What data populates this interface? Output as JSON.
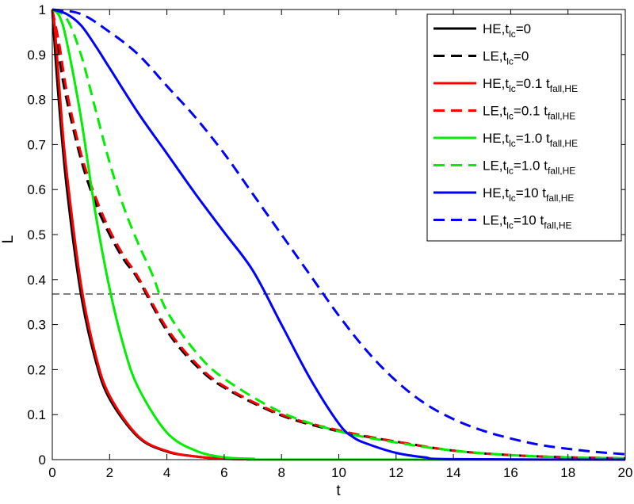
{
  "chart_data": {
    "type": "line",
    "title": "",
    "xlabel": "t",
    "ylabel": "L",
    "xlim": [
      0,
      20
    ],
    "ylim": [
      0,
      1
    ],
    "xticks": [
      0,
      2,
      4,
      6,
      8,
      10,
      12,
      14,
      16,
      18,
      20
    ],
    "yticks": [
      0,
      0.1,
      0.2,
      0.3,
      0.4,
      0.5,
      0.6,
      0.7,
      0.8,
      0.9,
      1
    ],
    "grid": false,
    "legend_position": "top-right",
    "reference_line": {
      "y": 0.3679,
      "style": "dashed",
      "color": "#000000"
    },
    "series": [
      {
        "name": "HE,t_lc=0",
        "legend": {
          "prefix": "HE,t",
          "sub1": "lc",
          "mid": "=0",
          "sub2": ""
        },
        "color": "#000000",
        "dash": "solid",
        "x": [
          0,
          0.2,
          0.5,
          1.0,
          1.5,
          2.0,
          3.0,
          4.0,
          5.0,
          6.0,
          7.0,
          8.0,
          20
        ],
        "y": [
          1,
          0.819,
          0.607,
          0.368,
          0.223,
          0.135,
          0.05,
          0.018,
          0.007,
          0.002,
          0.001,
          0.0,
          0.0
        ]
      },
      {
        "name": "LE,t_lc=0",
        "legend": {
          "prefix": "LE,t",
          "sub1": "lc",
          "mid": "=0",
          "sub2": ""
        },
        "color": "#000000",
        "dash": "dashed",
        "x": [
          0,
          0.25,
          0.5,
          1.0,
          1.5,
          2.0,
          2.5,
          3.0,
          4.0,
          5.0,
          6.0,
          8.0,
          10.0,
          12.0,
          14.0,
          16.0,
          18.0,
          20.0
        ],
        "y": [
          1,
          0.889,
          0.8,
          0.667,
          0.571,
          0.5,
          0.444,
          0.4,
          0.286,
          0.21,
          0.16,
          0.098,
          0.063,
          0.04,
          0.02,
          0.01,
          0.005,
          0.003
        ]
      },
      {
        "name": "HE,t_lc=0.1 t_fall,HE",
        "legend": {
          "prefix": "HE,t",
          "sub1": "lc",
          "mid": "=0.1 t",
          "sub2": "fall,HE"
        },
        "color": "#ff0000",
        "dash": "solid",
        "x": [
          0,
          0.1,
          0.3,
          0.5,
          1.0,
          1.5,
          2.0,
          3.0,
          4.0,
          5.0,
          6.0,
          7.0,
          8.0,
          20
        ],
        "y": [
          1,
          0.95,
          0.78,
          0.64,
          0.39,
          0.235,
          0.142,
          0.052,
          0.019,
          0.007,
          0.002,
          0.001,
          0.0,
          0.0
        ]
      },
      {
        "name": "LE,t_lc=0.1 t_fall,HE",
        "legend": {
          "prefix": "LE,t",
          "sub1": "lc",
          "mid": "=0.1 t",
          "sub2": "fall,HE"
        },
        "color": "#ff0000",
        "dash": "dashed",
        "x": [
          0,
          0.25,
          0.5,
          1.0,
          1.5,
          2.0,
          2.5,
          3.0,
          4.0,
          5.0,
          6.0,
          8.0,
          10.0,
          12.0,
          14.0,
          16.0,
          18.0,
          20.0
        ],
        "y": [
          1,
          0.92,
          0.82,
          0.68,
          0.585,
          0.51,
          0.452,
          0.405,
          0.292,
          0.215,
          0.163,
          0.1,
          0.065,
          0.04,
          0.02,
          0.01,
          0.005,
          0.003
        ]
      },
      {
        "name": "HE,t_lc=1.0 t_fall,HE",
        "legend": {
          "prefix": "HE,t",
          "sub1": "lc",
          "mid": "=1.0 t",
          "sub2": "fall,HE"
        },
        "color": "#00ee00",
        "dash": "solid",
        "x": [
          0,
          0.25,
          0.5,
          1.0,
          1.5,
          2.0,
          2.5,
          3.0,
          4.0,
          5.0,
          6.0,
          7.0,
          8.0,
          20
        ],
        "y": [
          1,
          0.985,
          0.93,
          0.76,
          0.55,
          0.38,
          0.25,
          0.16,
          0.06,
          0.02,
          0.005,
          0.002,
          0.0,
          0.0
        ]
      },
      {
        "name": "LE,t_lc=1.0 t_fall,HE",
        "legend": {
          "prefix": "LE,t",
          "sub1": "lc",
          "mid": "=1.0 t",
          "sub2": "fall,HE"
        },
        "color": "#00ee00",
        "dash": "dashed",
        "x": [
          0,
          0.5,
          1.0,
          1.5,
          2.0,
          2.5,
          3.0,
          3.5,
          4.0,
          5.0,
          6.0,
          8.0,
          10.0,
          12.0,
          14.0,
          16.0,
          18.0,
          20.0
        ],
        "y": [
          1,
          0.98,
          0.9,
          0.78,
          0.66,
          0.56,
          0.48,
          0.41,
          0.33,
          0.24,
          0.18,
          0.105,
          0.063,
          0.038,
          0.02,
          0.01,
          0.005,
          0.003
        ]
      },
      {
        "name": "HE,t_lc=10 t_fall,HE",
        "legend": {
          "prefix": "HE,t",
          "sub1": "lc",
          "mid": "=10 t",
          "sub2": "fall,HE"
        },
        "color": "#0000ff",
        "dash": "solid",
        "x": [
          0,
          0.5,
          1.0,
          1.5,
          2.0,
          3.0,
          4.0,
          5.0,
          6.0,
          7.0,
          8.0,
          9.0,
          10.0,
          10.5,
          11.0,
          12.0,
          13.0,
          14.0,
          20
        ],
        "y": [
          1,
          0.99,
          0.965,
          0.92,
          0.87,
          0.77,
          0.68,
          0.59,
          0.505,
          0.42,
          0.3,
          0.18,
          0.08,
          0.05,
          0.035,
          0.015,
          0.005,
          0.001,
          0.0
        ]
      },
      {
        "name": "LE,t_lc=10 t_fall,HE",
        "legend": {
          "prefix": "LE,t",
          "sub1": "lc",
          "mid": "=10 t",
          "sub2": "fall,HE"
        },
        "color": "#0000ff",
        "dash": "dashed",
        "x": [
          0,
          1.0,
          2.0,
          3.0,
          4.0,
          5.0,
          6.0,
          7.0,
          8.0,
          9.0,
          10.0,
          11.0,
          12.0,
          13.0,
          14.0,
          15.0,
          16.0,
          17.0,
          18.0,
          19.0,
          20.0
        ],
        "y": [
          1,
          0.99,
          0.95,
          0.9,
          0.83,
          0.76,
          0.68,
          0.59,
          0.5,
          0.41,
          0.32,
          0.24,
          0.175,
          0.125,
          0.09,
          0.065,
          0.047,
          0.033,
          0.024,
          0.017,
          0.012
        ]
      }
    ]
  }
}
